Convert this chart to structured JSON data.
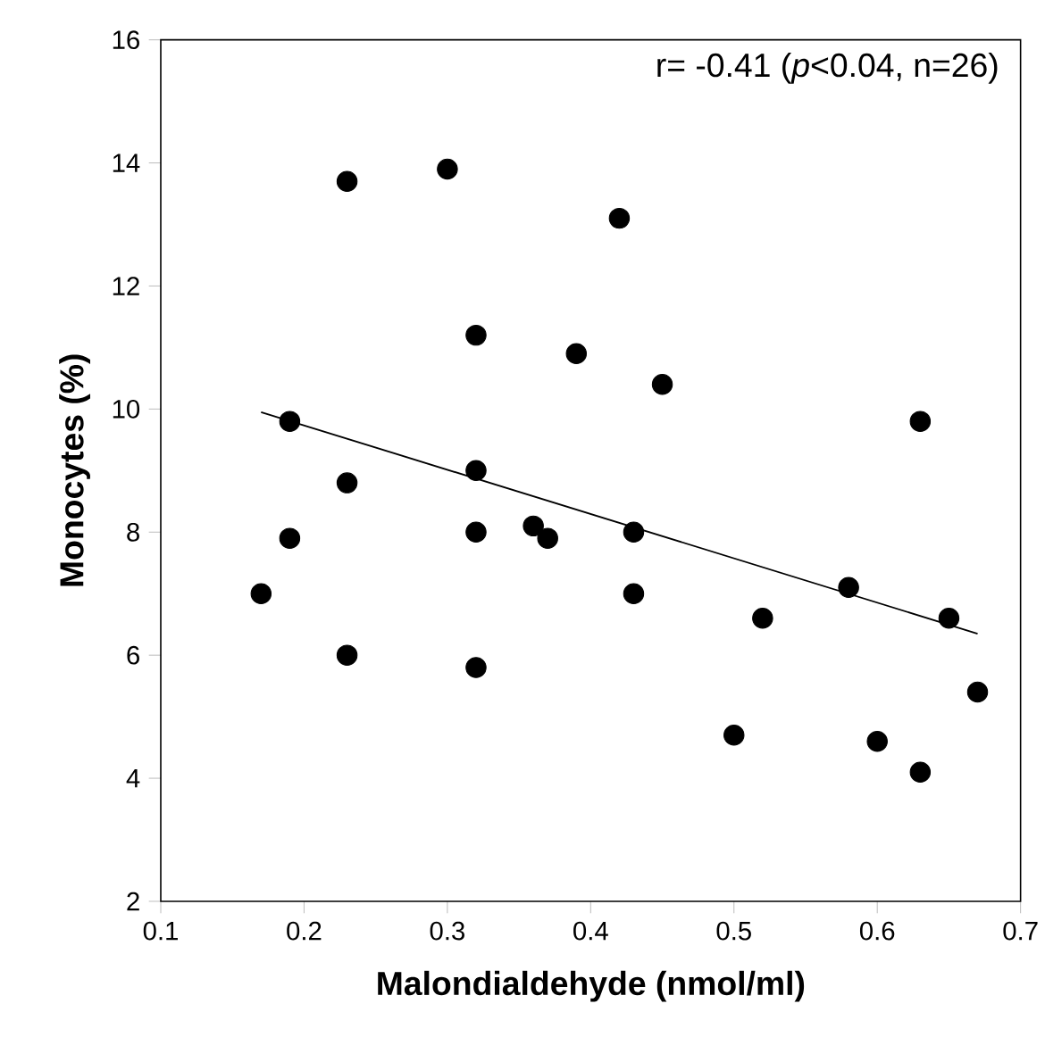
{
  "chart_data": {
    "type": "scatter",
    "xlabel": "Malondialdehyde (nmol/ml)",
    "ylabel": "Monocytes (%)",
    "annotations": [
      "r= -0.41 (*p*<0.04, n=26)"
    ],
    "xlim": [
      0.1,
      0.7
    ],
    "ylim": [
      2,
      16
    ],
    "xticks": [
      0.1,
      0.2,
      0.3,
      0.4,
      0.5,
      0.6,
      0.7
    ],
    "yticks": [
      2,
      4,
      6,
      8,
      10,
      12,
      14,
      16
    ],
    "marker": "circle",
    "series": [
      {
        "color": "#000000",
        "x": [
          0.17,
          0.19,
          0.19,
          0.23,
          0.23,
          0.23,
          0.3,
          0.32,
          0.32,
          0.32,
          0.32,
          0.36,
          0.37,
          0.39,
          0.42,
          0.43,
          0.43,
          0.45,
          0.5,
          0.52,
          0.58,
          0.6,
          0.63,
          0.63,
          0.65,
          0.67
        ],
        "values": [
          7.0,
          9.8,
          7.9,
          13.7,
          8.8,
          6.0,
          13.9,
          11.2,
          9.0,
          8.0,
          5.8,
          8.1,
          7.9,
          10.9,
          13.1,
          8.0,
          7.0,
          10.4,
          4.7,
          6.6,
          7.1,
          4.6,
          9.8,
          4.1,
          6.6,
          5.4
        ]
      },
      {
        "type": "line",
        "color": "#000000",
        "x": [
          0.17,
          0.67
        ],
        "values": [
          9.95,
          6.35
        ],
        "marker": "none"
      }
    ]
  }
}
